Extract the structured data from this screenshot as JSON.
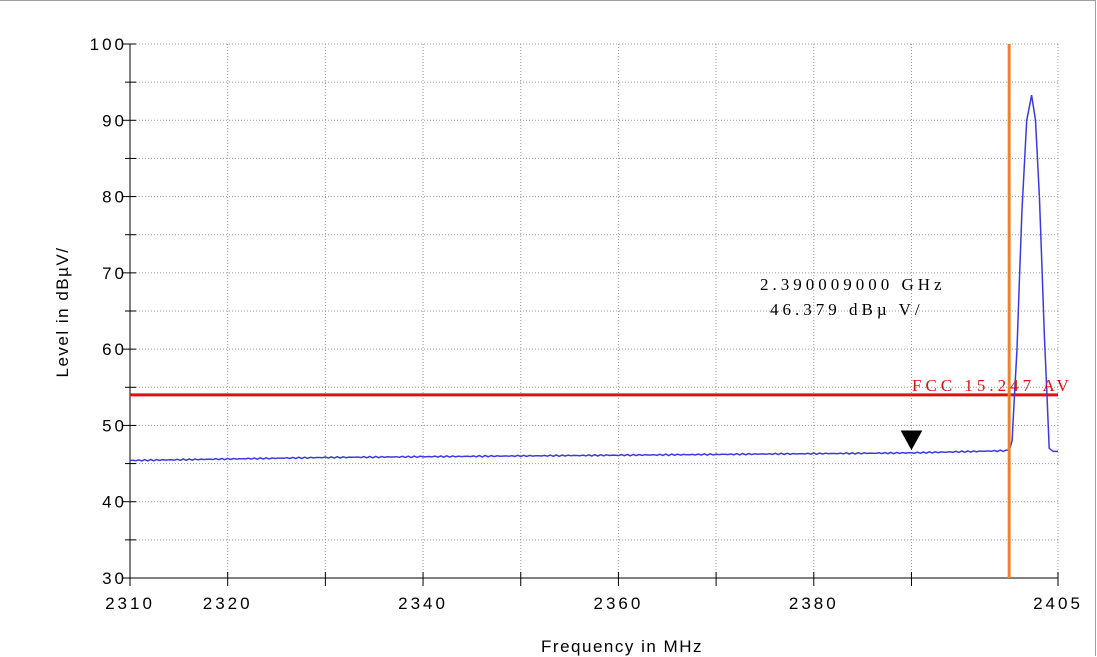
{
  "colors": {
    "trace": "#3a3ae0",
    "limit": "#e01010",
    "vline": "#f08030",
    "grid": "#9a9a9a",
    "axis": "#000000"
  },
  "chart_data": {
    "type": "line",
    "xlabel": "Frequency in MHz",
    "ylabel": "Level in dBµV/",
    "xlim": [
      2310,
      2405
    ],
    "ylim": [
      30,
      100
    ],
    "x_ticks": [
      2310,
      2320,
      2340,
      2360,
      2380,
      2405
    ],
    "x_tick_labels": [
      "2310",
      "2320",
      "2340",
      "2360",
      "2380",
      "2405"
    ],
    "x_minor_ticks": [
      2330,
      2350,
      2370,
      2390
    ],
    "y_ticks": [
      30,
      40,
      50,
      60,
      70,
      80,
      90,
      100
    ],
    "y_tick_labels": [
      "30",
      "40",
      "50",
      "60",
      "70",
      "80",
      "90",
      "100"
    ],
    "grid": true,
    "series": [
      {
        "x": [
          2310,
          2320,
          2330,
          2340,
          2350,
          2360,
          2370,
          2380,
          2390,
          2400,
          2400.3,
          2400.8,
          2401.3,
          2401.8,
          2402.3,
          2402.7,
          2403.1,
          2403.6,
          2404.1,
          2404.5,
          2405
        ],
        "y": [
          45.4,
          45.6,
          45.8,
          45.9,
          46.0,
          46.1,
          46.2,
          46.3,
          46.4,
          46.7,
          48,
          60,
          78,
          90,
          93.3,
          90,
          80,
          62,
          47,
          46.6,
          46.6
        ]
      }
    ],
    "limit_line": {
      "label": "FCC 15.247 AV",
      "value": 54.0
    },
    "vertical_line": {
      "x": 2400
    },
    "marker": {
      "x": 2390,
      "y": 46.379,
      "readout_freq": "2.390009000 GHz",
      "readout_level": "46.379 dBµ V/"
    }
  }
}
